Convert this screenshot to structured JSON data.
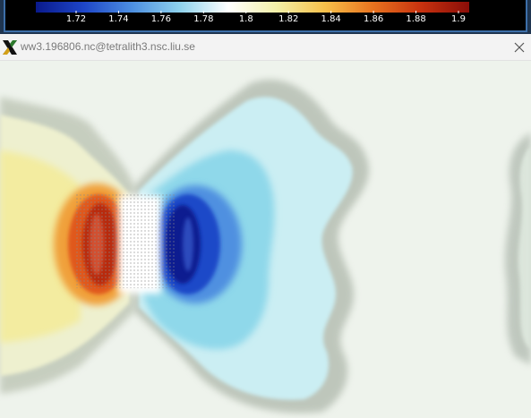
{
  "window": {
    "title": "ww3.196806.nc@tetralith3.nsc.liu.se",
    "app_icon": "x11-logo-icon",
    "close_icon": "close-icon"
  },
  "colorbar": {
    "tick_labels": [
      "1.72",
      "1.74",
      "1.76",
      "1.78",
      "1.8",
      "1.82",
      "1.84",
      "1.86",
      "1.88",
      "1.9"
    ],
    "colors": [
      "#0a1a8c",
      "#1e46c8",
      "#4d8fe0",
      "#8fd2ec",
      "#ffffff",
      "#f3f0a8",
      "#f6c04a",
      "#e8731f",
      "#c8320f",
      "#8a0d08"
    ]
  },
  "plot": {
    "description_colors": {
      "background": "#f0f4ef",
      "high": "#c8320f",
      "low": "#0a1a8c"
    }
  }
}
